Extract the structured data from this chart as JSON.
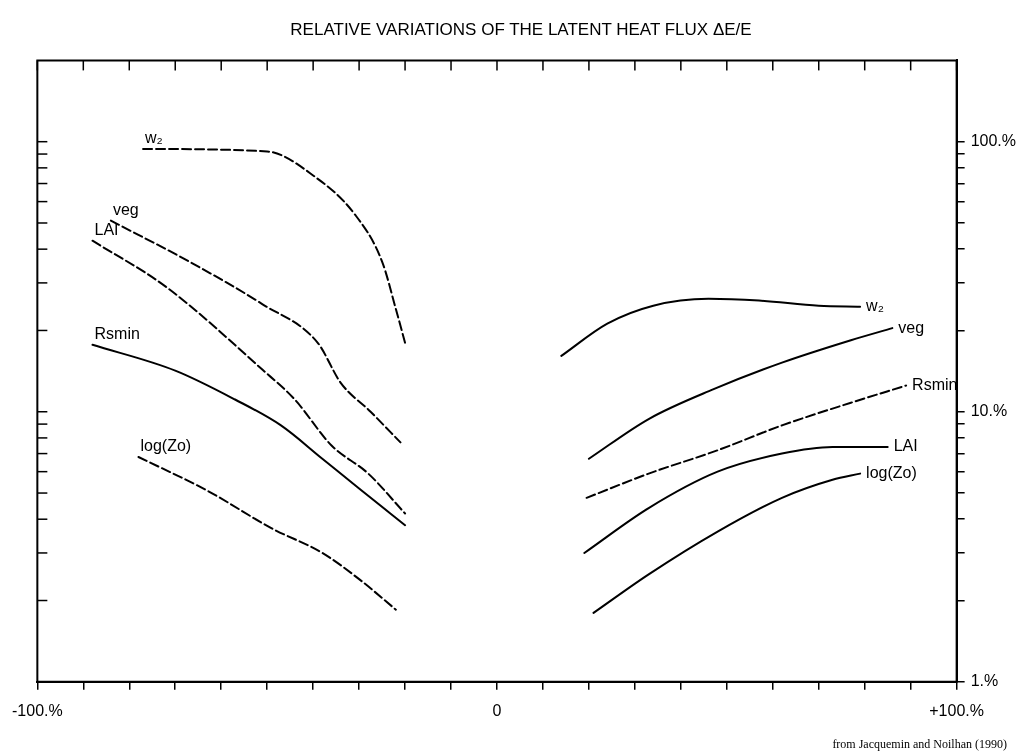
{
  "chart_data": {
    "type": "line",
    "title": "RELATIVE VARIATIONS OF THE LATENT HEAT FLUX ΔE/E",
    "annotations": [
      "from Jacquemin and Noilhan (1990)"
    ],
    "xlim": [
      -100,
      100
    ],
    "xticks": [
      {
        "value": -100,
        "label": "-100.%"
      },
      {
        "value": -90,
        "label": null
      },
      {
        "value": -80,
        "label": null
      },
      {
        "value": -70,
        "label": null
      },
      {
        "value": -60,
        "label": null
      },
      {
        "value": -50,
        "label": null
      },
      {
        "value": -40,
        "label": null
      },
      {
        "value": -30,
        "label": null
      },
      {
        "value": -20,
        "label": null
      },
      {
        "value": -10,
        "label": null
      },
      {
        "value": 0,
        "label": "0"
      },
      {
        "value": 10,
        "label": null
      },
      {
        "value": 20,
        "label": null
      },
      {
        "value": 30,
        "label": null
      },
      {
        "value": 40,
        "label": null
      },
      {
        "value": 50,
        "label": null
      },
      {
        "value": 60,
        "label": null
      },
      {
        "value": 70,
        "label": null
      },
      {
        "value": 80,
        "label": null
      },
      {
        "value": 90,
        "label": null
      },
      {
        "value": 100,
        "label": "+100.%"
      }
    ],
    "ylim": [
      1,
      200
    ],
    "log": "y",
    "yticks": [
      {
        "value": 1,
        "label": "1.%"
      },
      {
        "value": 2,
        "label": null
      },
      {
        "value": 3,
        "label": null
      },
      {
        "value": 4,
        "label": null
      },
      {
        "value": 5,
        "label": null
      },
      {
        "value": 6,
        "label": null
      },
      {
        "value": 7,
        "label": null
      },
      {
        "value": 8,
        "label": null
      },
      {
        "value": 9,
        "label": null
      },
      {
        "value": 10,
        "label": "10.%"
      },
      {
        "value": 20,
        "label": null
      },
      {
        "value": 30,
        "label": null
      },
      {
        "value": 40,
        "label": null
      },
      {
        "value": 50,
        "label": null
      },
      {
        "value": 60,
        "label": null
      },
      {
        "value": 70,
        "label": null
      },
      {
        "value": 80,
        "label": null
      },
      {
        "value": 90,
        "label": null
      },
      {
        "value": 100,
        "label": "100.%"
      }
    ],
    "grid": false,
    "legend": false,
    "marker": "none",
    "series": [
      {
        "name": "w₂",
        "color": "#000000",
        "line_style": "dashed",
        "x": [
          -77,
          -50,
          -40,
          -31,
          -25,
          -22,
          -20
        ],
        "values": [
          94,
          92,
          75,
          54,
          36,
          24,
          18
        ]
      },
      {
        "name": "veg",
        "color": "#000000",
        "line_style": "dashed",
        "x": [
          -84,
          -67,
          -51,
          -39,
          -34,
          -27.5,
          -21
        ],
        "values": [
          51,
          36,
          25,
          18,
          12.8,
          10,
          7.7
        ]
      },
      {
        "name": "LAI",
        "color": "#000000",
        "line_style": "dashed",
        "x": [
          -88,
          -72,
          -51,
          -44,
          -36,
          -28,
          -20
        ],
        "values": [
          43,
          29,
          14.3,
          11.1,
          7.5,
          5.9,
          4.2
        ]
      },
      {
        "name": "Rsmin",
        "color": "#000000",
        "line_style": "solid",
        "x": [
          -88,
          -70,
          -57,
          -47,
          -38,
          -30,
          -20
        ],
        "values": [
          17.7,
          14.2,
          11.1,
          8.9,
          6.7,
          5.2,
          3.8
        ]
      },
      {
        "name": "log(Zo)",
        "color": "#000000",
        "line_style": "dashed",
        "x": [
          -78,
          -63,
          -49,
          -38,
          -30,
          -22
        ],
        "values": [
          6.8,
          5.1,
          3.7,
          3.0,
          2.4,
          1.85
        ]
      },
      {
        "name": "w₂",
        "color": "#000000",
        "line_style": "solid",
        "x": [
          14,
          24,
          34,
          46,
          57,
          70,
          79
        ],
        "values": [
          16.1,
          21.2,
          24.7,
          26.2,
          25.8,
          24.7,
          24.5
        ]
      },
      {
        "name": "veg",
        "color": "#000000",
        "line_style": "solid",
        "x": [
          20,
          33,
          47,
          62,
          77,
          86
        ],
        "values": [
          6.7,
          9.4,
          12.1,
          15.2,
          18.4,
          20.4
        ]
      },
      {
        "name": "Rsmin",
        "color": "#000000",
        "line_style": "dashed",
        "x": [
          19.5,
          33,
          48,
          62,
          77,
          89
        ],
        "values": [
          4.8,
          5.9,
          7.2,
          8.9,
          10.8,
          12.5
        ]
      },
      {
        "name": "LAI",
        "color": "#000000",
        "line_style": "solid",
        "x": [
          19,
          33,
          48,
          62,
          73,
          85
        ],
        "values": [
          3.0,
          4.4,
          6.0,
          7.0,
          7.4,
          7.4
        ]
      },
      {
        "name": "log(Zo)",
        "color": "#000000",
        "line_style": "solid",
        "x": [
          21,
          33,
          48,
          62,
          73,
          79
        ],
        "values": [
          1.8,
          2.5,
          3.6,
          4.8,
          5.6,
          5.9
        ]
      }
    ]
  }
}
